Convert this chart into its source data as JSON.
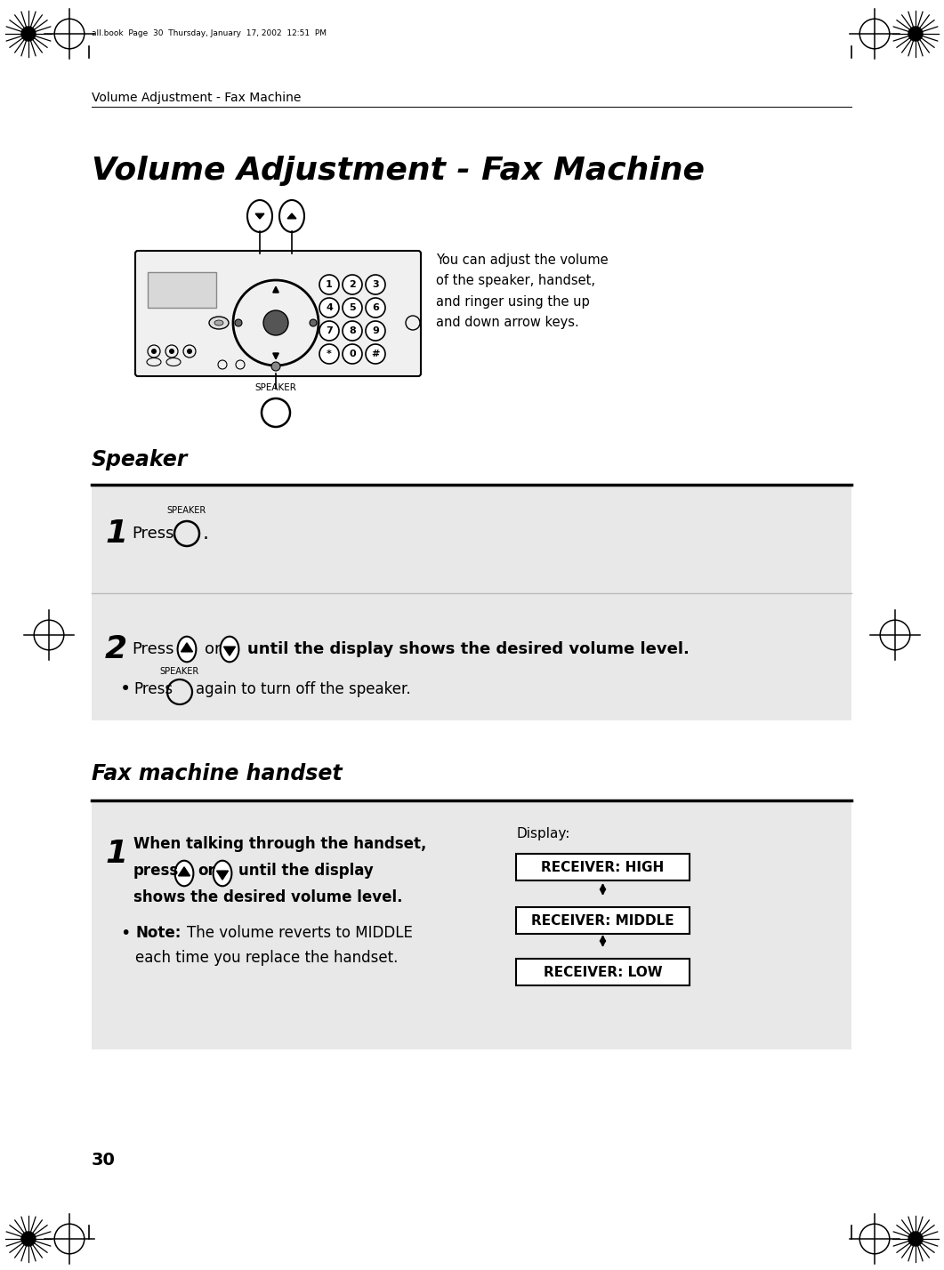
{
  "page_title_header": "Volume Adjustment - Fax Machine",
  "main_title": "Volume Adjustment - Fax Machine",
  "header_meta": "all.book■Page■30■Thursday, January■17, 2002■12:51■PM",
  "page_number": "30",
  "section1_title": "Speaker",
  "section2_title": "Fax machine handset",
  "desc_text": "You can adjust the volume\nof the speaker, handset,\nand ringer using the up\nand down arrow keys.",
  "speaker_label": "SPEAKER",
  "display_label": "Display:",
  "display_items": [
    "RECEIVER: HIGH",
    "RECEIVER: MIDDLE",
    "RECEIVER: LOW"
  ],
  "bg_color": "#ffffff",
  "box_bg": "#e8e8e8",
  "black": "#000000",
  "display_box_bg": "#ffffff",
  "fax_body_color": "#f0f0f0",
  "keypad_keys": [
    [
      "1",
      "2",
      "3"
    ],
    [
      "4",
      "5",
      "6"
    ],
    [
      "7",
      "8",
      "9"
    ],
    [
      "*",
      "0",
      "#"
    ]
  ]
}
